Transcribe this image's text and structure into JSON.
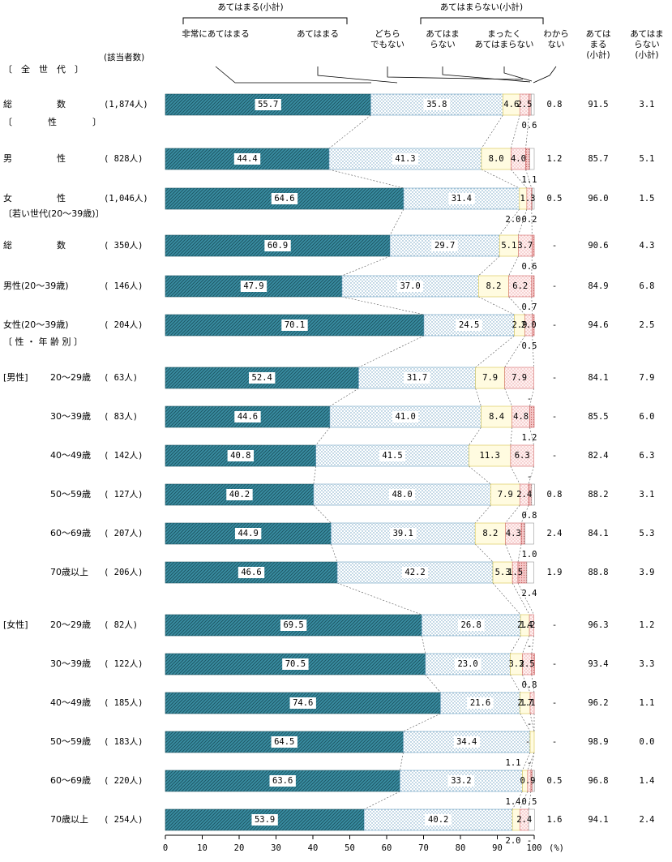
{
  "chart_data": {
    "type": "bar",
    "orientation": "horizontal",
    "stacked": true,
    "unit": "(%)",
    "x_axis": {
      "range": [
        0,
        100
      ],
      "ticks": [
        "0",
        "10",
        "20",
        "30",
        "40",
        "50",
        "60",
        "70",
        "80",
        "90",
        "100"
      ]
    },
    "header": {
      "group_apply": "あてはまる(小計)",
      "group_not_apply": "あてはまらない(小計)",
      "count_header": "(該当者数)",
      "sub_cols": [
        "あてはまる(小計)",
        "あてはまらない(小計)"
      ]
    },
    "legend": [
      "非常にあてはまる",
      "あてはまる",
      "どちらでもない",
      "あてはまらない",
      "まったくあてはまらない",
      "わからない"
    ],
    "legend_lines": [
      [
        "非常にあてはまる"
      ],
      [
        "あてはまる"
      ],
      [
        "どちら",
        "でもない"
      ],
      [
        "あてはま",
        "らない"
      ],
      [
        "まったく",
        "あてはまらない"
      ],
      [
        "わから",
        "ない"
      ]
    ],
    "sub_col_lines": [
      [
        "あては",
        "まる",
        "(小計)"
      ],
      [
        "あてはま",
        "らない",
        "(小計)"
      ]
    ],
    "colors": [
      "#3a8ea3",
      "#eef6fb",
      "#fffbe0",
      "#fde8e8",
      "#f4c6c6",
      "#ffffff"
    ],
    "sections": [
      {
        "type": "section",
        "label": "〔　全　世　代　〕"
      },
      {
        "type": "row",
        "label": "総　　　　　数",
        "count": "(1,874人)",
        "values": [
          55.7,
          35.8,
          4.6,
          2.5,
          0.6,
          0.8
        ],
        "show": [
          "55.7",
          "35.8",
          "4.6",
          "2.5",
          "0.6",
          "0.8"
        ],
        "sum_apply": "91.5",
        "sum_not": "3.1"
      },
      {
        "type": "section",
        "label": "〔　　　　性　　　　〕"
      },
      {
        "type": "row",
        "label": "男　　　　　性",
        "count": "(  828人)",
        "values": [
          44.4,
          41.3,
          8.0,
          4.0,
          1.1,
          1.2
        ],
        "show": [
          "44.4",
          "41.3",
          "8.0",
          "4.0",
          "1.1",
          "1.2"
        ],
        "sum_apply": "85.7",
        "sum_not": "5.1"
      },
      {
        "type": "row",
        "label": "女　　　　　性",
        "count": "(1,046人)",
        "values": [
          64.6,
          31.4,
          2.0,
          1.3,
          0.2,
          0.5
        ],
        "show": [
          "64.6",
          "31.4",
          "2.0",
          "1.3",
          "0.2",
          "0.5"
        ],
        "sum_apply": "96.0",
        "sum_not": "1.5"
      },
      {
        "type": "section",
        "label": "〔若い世代(20～39歳)〕"
      },
      {
        "type": "row",
        "label": "総　　　　　数",
        "count": "(  350人)",
        "values": [
          60.9,
          29.7,
          5.1,
          3.7,
          0.6,
          0
        ],
        "show": [
          "60.9",
          "29.7",
          "5.1",
          "3.7",
          "0.6",
          "-"
        ],
        "sum_apply": "90.6",
        "sum_not": "4.3"
      },
      {
        "type": "row",
        "label": "男性(20～39歳)",
        "count": "(  146人)",
        "values": [
          47.9,
          37.0,
          8.2,
          6.2,
          0.7,
          0
        ],
        "show": [
          "47.9",
          "37.0",
          "8.2",
          "6.2",
          "0.7",
          "-"
        ],
        "sum_apply": "84.9",
        "sum_not": "6.8"
      },
      {
        "type": "row",
        "label": "女性(20～39歳)",
        "count": "(  204人)",
        "values": [
          70.1,
          24.5,
          2.9,
          2.0,
          0.5,
          0
        ],
        "show": [
          "70.1",
          "24.5",
          "2.9",
          "2.0",
          "0.5",
          "-"
        ],
        "sum_apply": "94.6",
        "sum_not": "2.5"
      },
      {
        "type": "section",
        "label": "〔 性 ・ 年 齢 別 〕"
      },
      {
        "type": "row",
        "group": "[男性]",
        "label": "20～29歳",
        "count": "(   63人)",
        "values": [
          52.4,
          31.7,
          7.9,
          7.9,
          0,
          0
        ],
        "show": [
          "52.4",
          "31.7",
          "7.9",
          "7.9",
          "-",
          "-"
        ],
        "sum_apply": "84.1",
        "sum_not": "7.9"
      },
      {
        "type": "row",
        "label": "30～39歳",
        "count": "(   83人)",
        "values": [
          44.6,
          41.0,
          8.4,
          4.8,
          1.2,
          0
        ],
        "show": [
          "44.6",
          "41.0",
          "8.4",
          "4.8",
          "1.2",
          "-"
        ],
        "sum_apply": "85.5",
        "sum_not": "6.0"
      },
      {
        "type": "row",
        "label": "40～49歳",
        "count": "(  142人)",
        "values": [
          40.8,
          41.5,
          11.3,
          6.3,
          0,
          0
        ],
        "show": [
          "40.8",
          "41.5",
          "11.3",
          "6.3",
          "-",
          "-"
        ],
        "sum_apply": "82.4",
        "sum_not": "6.3"
      },
      {
        "type": "row",
        "label": "50～59歳",
        "count": "(  127人)",
        "values": [
          40.2,
          48.0,
          7.9,
          2.4,
          0.8,
          0.8
        ],
        "show": [
          "40.2",
          "48.0",
          "7.9",
          "2.4",
          "0.8",
          "0.8"
        ],
        "sum_apply": "88.2",
        "sum_not": "3.1"
      },
      {
        "type": "row",
        "label": "60～69歳",
        "count": "(  207人)",
        "values": [
          44.9,
          39.1,
          8.2,
          4.3,
          1.0,
          2.4
        ],
        "show": [
          "44.9",
          "39.1",
          "8.2",
          "4.3",
          "1.0",
          "2.4"
        ],
        "sum_apply": "84.1",
        "sum_not": "5.3"
      },
      {
        "type": "row",
        "label": "70歳以上",
        "count": "(  206人)",
        "values": [
          46.6,
          42.2,
          5.3,
          1.5,
          2.4,
          1.9
        ],
        "show": [
          "46.6",
          "42.2",
          "5.3",
          "1.5",
          "2.4",
          "1.9"
        ],
        "sum_apply": "88.8",
        "sum_not": "3.9"
      },
      {
        "type": "row",
        "group": "[女性]",
        "label": "20～29歳",
        "count": "(   82人)",
        "values": [
          69.5,
          26.8,
          2.4,
          1.2,
          0,
          0
        ],
        "show": [
          "69.5",
          "26.8",
          "2.4",
          "1.2",
          "-",
          "-"
        ],
        "sum_apply": "96.3",
        "sum_not": "1.2"
      },
      {
        "type": "row",
        "label": "30～39歳",
        "count": "(  122人)",
        "values": [
          70.5,
          23.0,
          3.3,
          2.5,
          0.8,
          0
        ],
        "show": [
          "70.5",
          "23.0",
          "3.3",
          "2.5",
          "0.8",
          "-"
        ],
        "sum_apply": "93.4",
        "sum_not": "3.3"
      },
      {
        "type": "row",
        "label": "40～49歳",
        "count": "(  185人)",
        "values": [
          74.6,
          21.6,
          2.7,
          1.1,
          0,
          0
        ],
        "show": [
          "74.6",
          "21.6",
          "2.7",
          "1.1",
          "-",
          "-"
        ],
        "sum_apply": "96.2",
        "sum_not": "1.1"
      },
      {
        "type": "row",
        "label": "50～59歳",
        "count": "(  183人)",
        "values": [
          64.5,
          34.4,
          1.1,
          0,
          0,
          0
        ],
        "show": [
          "64.5",
          "34.4",
          "1.1",
          "-",
          "-",
          "-"
        ],
        "sum_apply": "98.9",
        "sum_not": "0.0"
      },
      {
        "type": "row",
        "label": "60～69歳",
        "count": "(  220人)",
        "values": [
          63.6,
          33.2,
          1.4,
          0.9,
          0.5,
          0.5
        ],
        "show": [
          "63.6",
          "33.2",
          "1.4",
          "0.9",
          "0.5",
          "0.5"
        ],
        "sum_apply": "96.8",
        "sum_not": "1.4"
      },
      {
        "type": "row",
        "label": "70歳以上",
        "count": "(  254人)",
        "values": [
          53.9,
          40.2,
          2.0,
          2.4,
          0,
          1.6
        ],
        "show": [
          "53.9",
          "40.2",
          "2.0",
          "2.4",
          "-",
          "1.6"
        ],
        "sum_apply": "94.1",
        "sum_not": "2.4"
      }
    ]
  }
}
